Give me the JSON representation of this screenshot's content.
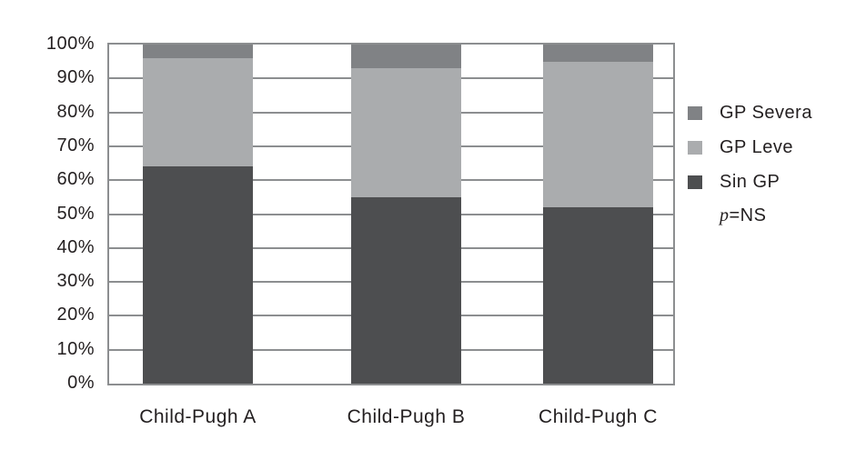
{
  "chart_data": {
    "type": "bar",
    "stacked": true,
    "percent_scale": true,
    "categories": [
      "Child-Pugh A",
      "Child-Pugh B",
      "Child-Pugh C"
    ],
    "series": [
      {
        "name": "Sin GP",
        "color": "#4d4e50",
        "values": [
          64,
          55,
          52
        ]
      },
      {
        "name": "GP Leve",
        "color": "#aaacae",
        "values": [
          32,
          38,
          43
        ]
      },
      {
        "name": "GP Severa",
        "color": "#808285",
        "values": [
          4,
          7,
          5
        ]
      }
    ],
    "ylim": [
      0,
      100
    ],
    "ytick_step": 10,
    "ytick_labels": [
      "0%",
      "10%",
      "20%",
      "30%",
      "40%",
      "50%",
      "60%",
      "70%",
      "80%",
      "90%",
      "100%"
    ],
    "grid": true,
    "legend_position": "right",
    "annotation": "p=NS"
  },
  "legend": {
    "items": [
      {
        "label": "GP Severa",
        "color": "#808285"
      },
      {
        "label": "GP Leve",
        "color": "#aaacae"
      },
      {
        "label": "Sin GP",
        "color": "#4d4e50"
      }
    ],
    "annotation": {
      "italic": "p",
      "rest": "=NS"
    }
  },
  "colors": {
    "background": "#ffffff",
    "gridline": "#8c8e90",
    "text": "#231f20"
  }
}
